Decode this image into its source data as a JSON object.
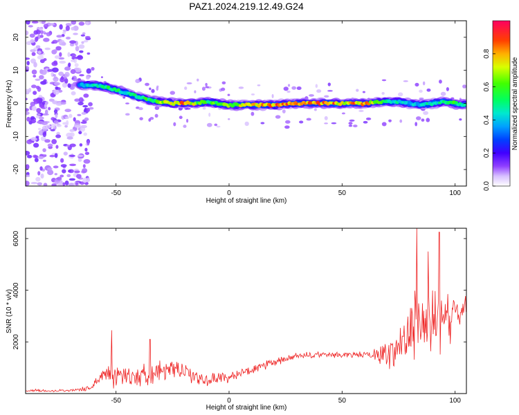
{
  "title": "PAZ1.2024.219.12.49.G24",
  "chart_data": [
    {
      "type": "heatmap",
      "xlabel": "Height of straight line (km)",
      "ylabel": "Frequency (Hz)",
      "xlim": [
        -90,
        105
      ],
      "ylim": [
        -25,
        25
      ],
      "xticks": [
        -50,
        0,
        50,
        100
      ],
      "yticks": [
        -20,
        -10,
        0,
        10,
        20
      ],
      "colorbar": {
        "label": "Normalized spectral amplitude",
        "range": [
          0,
          1
        ],
        "ticks": [
          0.0,
          0.2,
          0.4,
          0.6,
          0.8
        ],
        "colormap": [
          "#ffffff",
          "#c8a0ff",
          "#7000ff",
          "#0000ff",
          "#00c0ff",
          "#00ff80",
          "#40ff00",
          "#ffff00",
          "#ff8000",
          "#ff0000",
          "#ff0070"
        ]
      },
      "ridge": {
        "description": "dominant frequency track",
        "x": [
          -65,
          -60,
          -55,
          -50,
          -45,
          -40,
          -35,
          -30,
          -25,
          -20,
          -15,
          -10,
          -5,
          0,
          10,
          20,
          30,
          40,
          50,
          60,
          70,
          75,
          80,
          85,
          90,
          95,
          100,
          105
        ],
        "freq": [
          5.5,
          5.5,
          5,
          4,
          3,
          2,
          1,
          0.5,
          0,
          0,
          0,
          0.5,
          0,
          -0.5,
          -0.5,
          -0.5,
          0,
          0,
          0,
          0,
          0.5,
          0.5,
          0,
          -0.5,
          0,
          0.5,
          0,
          -0.5
        ],
        "amp": [
          0.4,
          0.5,
          0.55,
          0.55,
          0.5,
          0.55,
          0.6,
          0.7,
          0.85,
          0.9,
          0.75,
          0.6,
          0.65,
          0.7,
          0.8,
          0.95,
          0.9,
          0.95,
          0.85,
          0.9,
          0.55,
          0.5,
          0.45,
          0.45,
          0.5,
          0.55,
          0.6,
          0.5
        ]
      }
    },
    {
      "type": "line",
      "xlabel": "Height of straight line (km)",
      "ylabel": "SNR (10 * v/v)",
      "xlim": [
        -90,
        105
      ],
      "ylim": [
        0,
        6400
      ],
      "xticks": [
        -50,
        0,
        50,
        100
      ],
      "yticks": [
        2000,
        4000,
        6000
      ],
      "color": "#ee2222",
      "series": [
        {
          "x": [
            -90,
            -80,
            -70,
            -62,
            -58,
            -55,
            -53,
            -52,
            -50,
            -45,
            -40,
            -36,
            -35,
            -30,
            -25,
            -20,
            -15,
            -10,
            -5,
            0,
            10,
            20,
            30,
            40,
            50,
            60,
            65,
            70,
            73,
            75,
            78,
            80,
            82,
            83,
            85,
            88,
            90,
            92,
            93,
            95,
            98,
            100,
            102,
            105
          ],
          "mean": [
            120,
            110,
            120,
            200,
            500,
            800,
            900,
            900,
            650,
            700,
            650,
            800,
            850,
            900,
            900,
            850,
            650,
            500,
            600,
            650,
            900,
            1200,
            1450,
            1500,
            1500,
            1500,
            1500,
            1550,
            1600,
            1800,
            2300,
            2500,
            2600,
            2700,
            2800,
            2700,
            2800,
            2900,
            2800,
            2800,
            2900,
            3000,
            3200,
            3300
          ],
          "spread": [
            60,
            60,
            60,
            120,
            250,
            400,
            600,
            800,
            450,
            500,
            450,
            600,
            650,
            450,
            400,
            350,
            350,
            300,
            300,
            250,
            200,
            200,
            150,
            150,
            150,
            150,
            300,
            600,
            900,
            1200,
            1400,
            1500,
            1800,
            1800,
            1500,
            1600,
            1600,
            1500,
            1500,
            1300,
            1200,
            900,
            700,
            500
          ],
          "peaks": [
            {
              "x": -52,
              "y": 2450
            },
            {
              "x": -35,
              "y": 2100
            },
            {
              "x": 83,
              "y": 6400
            },
            {
              "x": 93,
              "y": 6250
            },
            {
              "x": 88,
              "y": 5500
            }
          ]
        }
      ]
    }
  ]
}
